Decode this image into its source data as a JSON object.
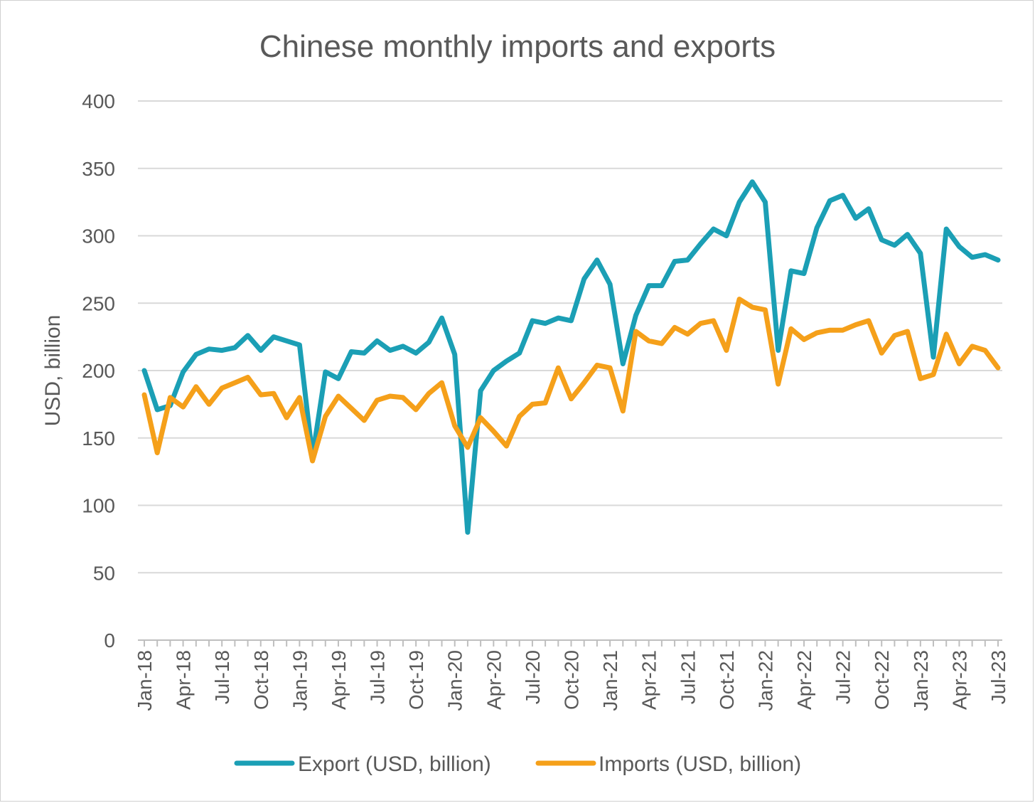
{
  "chart_data": {
    "type": "line",
    "title": "Chinese monthly imports and exports",
    "xlabel": "",
    "ylabel": "USD, billion",
    "ylim": [
      0,
      400
    ],
    "yticks": [
      "0",
      "50",
      "100",
      "150",
      "200",
      "250",
      "300",
      "350",
      "400"
    ],
    "grid": true,
    "legend_position": "bottom",
    "x": [
      "Jan-18",
      "Feb-18",
      "Mar-18",
      "Apr-18",
      "May-18",
      "Jun-18",
      "Jul-18",
      "Aug-18",
      "Sep-18",
      "Oct-18",
      "Nov-18",
      "Dec-18",
      "Jan-19",
      "Feb-19",
      "Mar-19",
      "Apr-19",
      "May-19",
      "Jun-19",
      "Jul-19",
      "Aug-19",
      "Sep-19",
      "Oct-19",
      "Nov-19",
      "Dec-19",
      "Jan-20",
      "Feb-20",
      "Mar-20",
      "Apr-20",
      "May-20",
      "Jun-20",
      "Jul-20",
      "Aug-20",
      "Sep-20",
      "Oct-20",
      "Nov-20",
      "Dec-20",
      "Jan-21",
      "Feb-21",
      "Mar-21",
      "Apr-21",
      "May-21",
      "Jun-21",
      "Jul-21",
      "Aug-21",
      "Sep-21",
      "Oct-21",
      "Nov-21",
      "Dec-21",
      "Jan-22",
      "Feb-22",
      "Mar-22",
      "Apr-22",
      "May-22",
      "Jun-22",
      "Jul-22",
      "Aug-22",
      "Sep-22",
      "Oct-22",
      "Nov-22",
      "Dec-22",
      "Jan-23",
      "Feb-23",
      "Mar-23",
      "Apr-23",
      "May-23",
      "Jun-23",
      "Jul-23"
    ],
    "xticks": [
      "Jan-18",
      "Apr-18",
      "Jul-18",
      "Oct-18",
      "Jan-19",
      "Apr-19",
      "Jul-19",
      "Oct-19",
      "Jan-20",
      "Apr-20",
      "Jul-20",
      "Oct-20",
      "Jan-21",
      "Apr-21",
      "Jul-21",
      "Oct-21",
      "Jan-22",
      "Apr-22",
      "Jul-22",
      "Oct-22",
      "Jan-23",
      "Apr-23",
      "Jul-23"
    ],
    "series": [
      {
        "name": "Export (USD, billion)",
        "color": "#1b9fb5",
        "values": [
          200,
          171,
          174,
          199,
          212,
          216,
          215,
          217,
          226,
          215,
          225,
          222,
          219,
          136,
          199,
          194,
          214,
          213,
          222,
          215,
          218,
          213,
          221,
          239,
          212,
          80,
          185,
          200,
          207,
          213,
          237,
          235,
          239,
          237,
          268,
          282,
          264,
          205,
          241,
          263,
          263,
          281,
          282,
          294,
          305,
          300,
          325,
          340,
          325,
          215,
          274,
          272,
          306,
          326,
          330,
          313,
          320,
          297,
          293,
          301,
          287,
          210,
          305,
          292,
          284,
          286,
          282
        ]
      },
      {
        "name": "Imports (USD, billion)",
        "color": "#f5a01a",
        "values": [
          182,
          139,
          180,
          173,
          188,
          175,
          187,
          191,
          195,
          182,
          183,
          165,
          180,
          133,
          166,
          181,
          172,
          163,
          178,
          181,
          180,
          171,
          183,
          191,
          159,
          143,
          165,
          155,
          144,
          166,
          175,
          176,
          202,
          179,
          191,
          204,
          202,
          170,
          229,
          222,
          220,
          232,
          227,
          235,
          237,
          215,
          253,
          247,
          245,
          190,
          231,
          223,
          228,
          230,
          230,
          234,
          237,
          213,
          226,
          229,
          194,
          197,
          227,
          205,
          218,
          215,
          202
        ]
      }
    ]
  }
}
